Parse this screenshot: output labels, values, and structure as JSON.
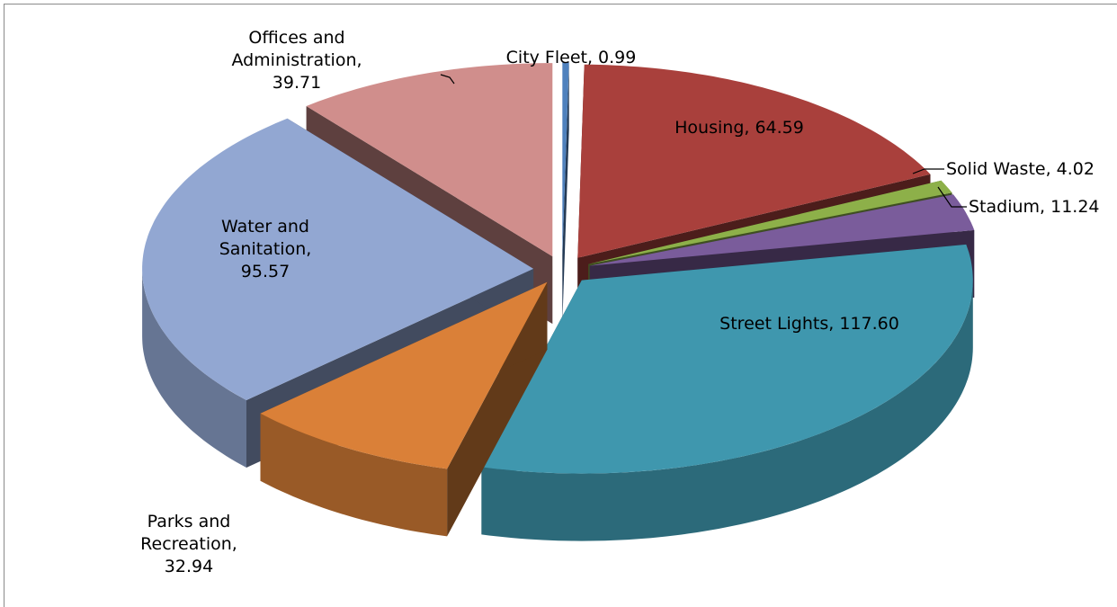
{
  "chart_data": {
    "type": "pie3d",
    "values": [
      0.99,
      64.59,
      4.02,
      11.24,
      117.6,
      32.94,
      95.57,
      39.71
    ],
    "value_labels": [
      "City Fleet, 0.99",
      "Housing, 64.59",
      "Solid Waste, 4.02",
      "Stadium, 11.24",
      "Street Lights, 117.60",
      "Parks and Recreation, 32.94",
      "Water and Sanitation, 95.57",
      "Offices and Administration, 39.71"
    ],
    "colors": [
      "#4f81bd",
      "#a9403c",
      "#8db049",
      "#7a5c9b",
      "#3f97ae",
      "#da8038",
      "#92a7d2",
      "#d08e8c"
    ]
  }
}
